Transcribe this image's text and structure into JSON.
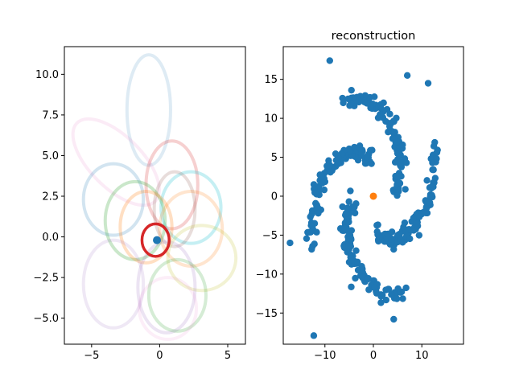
{
  "chart_data": [
    {
      "type": "scatter",
      "title": "",
      "xlabel": "",
      "ylabel": "",
      "xlim": [
        -7.0,
        6.3
      ],
      "ylim": [
        -6.6,
        11.7
      ],
      "xticks": [
        -5,
        0,
        5
      ],
      "xtick_labels": [
        "−5",
        "0",
        "5"
      ],
      "yticks": [
        -5.0,
        -2.5,
        0.0,
        2.5,
        5.0,
        7.5,
        10.0
      ],
      "ytick_labels": [
        "−5.0",
        "−2.5",
        "0.0",
        "2.5",
        "5.0",
        "7.5",
        "10.0"
      ],
      "grid": false,
      "ellipses": [
        {
          "cx": -0.8,
          "cy": 7.8,
          "rx": 1.6,
          "ry": 3.4,
          "color": "#1f77b4",
          "opacity": 0.15
        },
        {
          "cx": -3.2,
          "cy": 4.6,
          "rx": 1.9,
          "ry": 3.4,
          "angle": 45,
          "color": "#e377c2",
          "opacity": 0.15
        },
        {
          "cx": -3.4,
          "cy": 2.3,
          "rx": 2.2,
          "ry": 2.2,
          "color": "#1f77b4",
          "opacity": 0.2
        },
        {
          "cx": 0.9,
          "cy": 3.2,
          "rx": 1.9,
          "ry": 2.7,
          "color": "#d62728",
          "opacity": 0.22
        },
        {
          "cx": 2.3,
          "cy": 1.8,
          "rx": 2.2,
          "ry": 2.2,
          "color": "#17becf",
          "opacity": 0.25
        },
        {
          "cx": 1.1,
          "cy": 1.7,
          "rx": 1.5,
          "ry": 2.3,
          "color": "#8c564b",
          "opacity": 0.2
        },
        {
          "cx": -1.8,
          "cy": 1.0,
          "rx": 2.2,
          "ry": 2.4,
          "color": "#2ca02c",
          "opacity": 0.25
        },
        {
          "cx": -1.0,
          "cy": 0.6,
          "rx": 1.9,
          "ry": 2.2,
          "color": "#ff7f0e",
          "opacity": 0.25
        },
        {
          "cx": 2.3,
          "cy": 0.5,
          "rx": 2.3,
          "ry": 2.3,
          "color": "#ff7f0e",
          "opacity": 0.2
        },
        {
          "cx": 3.1,
          "cy": -1.3,
          "rx": 2.5,
          "ry": 2.0,
          "color": "#bcbd22",
          "opacity": 0.2
        },
        {
          "cx": 0.5,
          "cy": -3.1,
          "rx": 2.1,
          "ry": 2.8,
          "color": "#9467bd",
          "opacity": 0.18
        },
        {
          "cx": 1.3,
          "cy": -3.6,
          "rx": 2.1,
          "ry": 2.2,
          "color": "#2ca02c",
          "opacity": 0.2
        },
        {
          "cx": -3.4,
          "cy": -2.9,
          "rx": 2.2,
          "ry": 2.7,
          "color": "#9467bd",
          "opacity": 0.15
        },
        {
          "cx": 0.6,
          "cy": -4.4,
          "rx": 2.1,
          "ry": 1.9,
          "color": "#e377c2",
          "opacity": 0.12
        },
        {
          "cx": -0.3,
          "cy": -0.2,
          "rx": 1.0,
          "ry": 1.0,
          "color": "#d62728",
          "opacity": 1.0
        }
      ],
      "points": [
        {
          "x": -0.2,
          "y": -0.2,
          "color": "#1f77b4"
        }
      ]
    },
    {
      "type": "scatter",
      "title": "reconstruction",
      "xlabel": "",
      "ylabel": "",
      "xlim": [
        -18.6,
        18.6
      ],
      "ylim": [
        -19.0,
        19.2
      ],
      "xticks": [
        -10,
        0,
        10
      ],
      "xtick_labels": [
        "−10",
        "0",
        "10"
      ],
      "yticks": [
        -15,
        -10,
        -5,
        0,
        5,
        10,
        15
      ],
      "ytick_labels": [
        "−15",
        "−10",
        "−5",
        "0",
        "5",
        "10",
        "15"
      ],
      "grid": false,
      "series": [
        {
          "color": "#1f77b4",
          "arms": 4,
          "points_per_arm": 100
        },
        {
          "color": "#ff7f0e",
          "points": [
            [
              0.0,
              0.0
            ]
          ]
        }
      ],
      "outliers": [
        [
          -9,
          17.4
        ],
        [
          7,
          15.5
        ],
        [
          11.3,
          14.5
        ],
        [
          -17.2,
          -6
        ],
        [
          -12.3,
          -17.9
        ],
        [
          4.2,
          -15.8
        ]
      ]
    }
  ]
}
